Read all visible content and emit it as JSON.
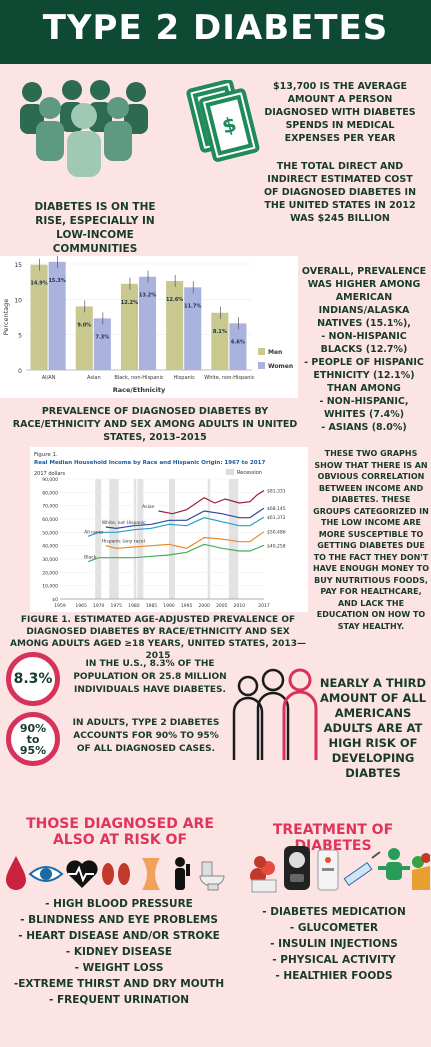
{
  "title": "TYPE 2 DIABETES",
  "cost": {
    "average": "$13,700 IS THE AVERAGE AMOUNT A PERSON DIAGNOSED WITH DIABETES SPENDS IN MEDICAL EXPENSES PER YEAR",
    "total": "THE TOTAL DIRECT AND INDIRECT ESTIMATED COST OF DIAGNOSED DIABETES IN THE UNITED STATES IN 2012 WAS $245 BILLION"
  },
  "rise_text": "DIABETES IS ON THE RISE, ESPECIALLY IN LOW-INCOME COMMUNITIES",
  "bar_caption": "PREVALENCE OF DIAGNOSED DIABETES BY RACE/ETHNICITY AND SEX AMONG ADULTS IN UNITED STATES, 2013–2015",
  "prevalence_lines": [
    "OVERALL, PREVALENCE WAS HIGHER AMONG AMERICAN INDIANS/ALASKA NATIVES (15.1%),",
    "- NON-HISPANIC BLACKS (12.7%)",
    "- PEOPLE OF HISPANIC ETHNICITY (12.1%)",
    "THAN AMONG",
    "- NON-HISPANIC, WHITES (7.4%)",
    "- ASIANS (8.0%)"
  ],
  "correlation_text": "THESE TWO GRAPHS SHOW THAT THERE IS AN OBVIOUS CORRELATION BETWEEN INCOME AND DIABETES. THESE GROUPS CATEGORIZED IN THE LOW INCOME ARE MORE SUSCEPTIBLE TO GETTING DIABETES DUE TO THE FACT THEY DON'T HAVE ENOUGH MONEY TO BUY NUTRITIOUS FOODS, PAY FOR HEALTHCARE, AND LACK THE EDUCATION ON HOW TO STAY HEALTHY.",
  "line_caption": "FIGURE 1. ESTIMATED AGE-ADJUSTED PREVALENCE OF DIAGNOSED DIABETES BY RACE/ETHNICITY AND SEX AMONG ADULTS AGED ≥18 YEARS, UNITED STATES, 2013—2015",
  "stat1": {
    "value": "8.3%",
    "text": "IN THE U.S., 8.3% OF THE POPULATION OR 25.8 MILLION INDIVIDUALS HAVE DIABETES."
  },
  "stat2": {
    "value_top": "90%",
    "value_mid": "to",
    "value_bottom": "95%",
    "text": "IN ADULTS, TYPE 2 DIABETES ACCOUNTS FOR 90% TO 95% OF ALL DIAGNOSED CASES."
  },
  "third_text": "NEARLY A THIRD AMOUNT OF ALL AMERICANS ADULTS ARE AT HIGH RISK OF DEVELOPING DIABTES",
  "risk": {
    "title": "THOSE DIAGNOSED ARE ALSO AT RISK OF",
    "items": [
      "- HIGH BLOOD PRESSURE",
      "- BLINDNESS AND EYE PROBLEMS",
      "- HEART DISEASE AND/OR STROKE",
      "- KIDNEY DISEASE",
      "- WEIGHT LOSS",
      "-EXTREME THIRST AND DRY MOUTH",
      "- FREQUENT URINATION"
    ]
  },
  "treatment": {
    "title": "TREATMENT OF DIABETES",
    "items": [
      "- DIABETES MEDICATION",
      "- GLUCOMETER",
      "- INSULIN INJECTIONS",
      "- PHYSICAL ACTIVITY",
      "- HEALTHIER FOODS"
    ]
  },
  "chart_data": [
    {
      "type": "bar",
      "ylabel": "Percentage",
      "xlabel": "Race/Ethnicity",
      "ylim": [
        0,
        15
      ],
      "yticks": [
        "0",
        "5",
        "10",
        "15"
      ],
      "categories": [
        "AI/AN",
        "Asian",
        "Black, non-Hispanic",
        "Hispanic",
        "White, non-Hispanic"
      ],
      "series": [
        {
          "name": "Men",
          "values": [
            14.9,
            9.0,
            12.2,
            12.6,
            8.1
          ],
          "labels": [
            "14.9%",
            "9.0%",
            "12.2%",
            "12.6%",
            "8.1%"
          ],
          "color": "#c9c88f"
        },
        {
          "name": "Women",
          "values": [
            15.3,
            7.3,
            13.2,
            11.7,
            6.6
          ],
          "labels": [
            "15.3%",
            "7.3%",
            "13.2%",
            "11.7%",
            "6.6%"
          ],
          "color": "#a9b3dd"
        }
      ]
    },
    {
      "type": "line",
      "figure_label": "Figure 1.",
      "title": "Real Median Household Income by Race and Hispanic Origin: 1967 to 2017",
      "unit_label": "2017 dollars",
      "legend": "Recession",
      "ylim": [
        0,
        90000
      ],
      "yticks": [
        "$0",
        "10,000",
        "20,000",
        "30,000",
        "40,000",
        "50,000",
        "60,000",
        "70,000",
        "80,000",
        "90,000"
      ],
      "xticks": [
        "1959",
        "1965",
        "1970",
        "1975",
        "1980",
        "1985",
        "1990",
        "1995",
        "2000",
        "2005",
        "2010",
        "2017"
      ],
      "recessions": [
        [
          1969,
          1970
        ],
        [
          1973,
          1975
        ],
        [
          1980,
          1980
        ],
        [
          1981,
          1982
        ],
        [
          1990,
          1991
        ],
        [
          2001,
          2001
        ],
        [
          2007,
          2009
        ]
      ],
      "series": [
        {
          "name": "Asian",
          "end_label": "$81,331",
          "color": "#9c1d3e",
          "x": [
            1987,
            1991,
            1995,
            2000,
            2003,
            2006,
            2010,
            2013,
            2015,
            2017
          ],
          "y": [
            66000,
            64000,
            67000,
            76000,
            72000,
            75000,
            72000,
            73000,
            78000,
            81331
          ]
        },
        {
          "name": "White, not Hispanic",
          "end_label": "$68,145",
          "color": "#2d4a9e",
          "x": [
            1972,
            1975,
            1980,
            1985,
            1990,
            1995,
            2000,
            2005,
            2010,
            2013,
            2017
          ],
          "y": [
            54000,
            53000,
            55000,
            56000,
            59000,
            59000,
            66000,
            64000,
            61000,
            61000,
            68145
          ]
        },
        {
          "name": "All races",
          "end_label": "$61,372",
          "color": "#25a0c8",
          "x": [
            1967,
            1970,
            1975,
            1980,
            1985,
            1990,
            1995,
            2000,
            2005,
            2010,
            2013,
            2017
          ],
          "y": [
            47000,
            50000,
            50000,
            52000,
            53000,
            56000,
            55000,
            61000,
            58000,
            55000,
            55000,
            61372
          ]
        },
        {
          "name": "Hispanic (any race)",
          "end_label": "$50,486",
          "color": "#e98a2c",
          "x": [
            1972,
            1975,
            1980,
            1985,
            1990,
            1995,
            2000,
            2005,
            2010,
            2013,
            2017
          ],
          "y": [
            40000,
            38000,
            39000,
            40000,
            41000,
            38000,
            46000,
            45000,
            43000,
            43000,
            50486
          ]
        },
        {
          "name": "Black",
          "end_label": "$40,258",
          "color": "#4caa5c",
          "x": [
            1967,
            1970,
            1975,
            1980,
            1985,
            1990,
            1995,
            2000,
            2005,
            2010,
            2013,
            2017
          ],
          "y": [
            28000,
            31000,
            31000,
            31000,
            32000,
            33000,
            35000,
            41000,
            38000,
            36000,
            36000,
            40258
          ]
        }
      ]
    }
  ],
  "colors": {
    "header": "#0e4a33",
    "background": "#fde4e4",
    "accent": "#e0345a",
    "text": "#173a2c"
  }
}
